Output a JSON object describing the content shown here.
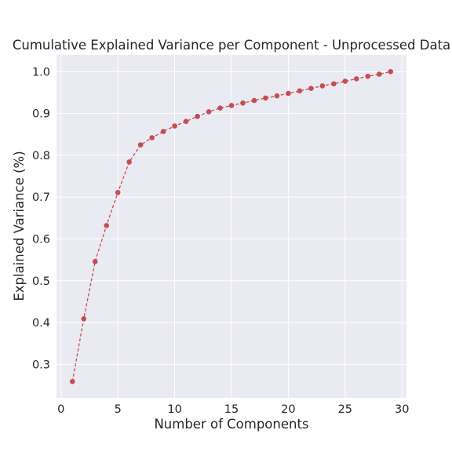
{
  "chart_data": {
    "type": "line",
    "title": "Cumulative Explained Variance per Component - Unprocessed Data",
    "xlabel": "Number of Components",
    "ylabel": "Explained Variance (%)",
    "xlim": [
      -0.4,
      30.4
    ],
    "ylim": [
      0.22,
      1.04
    ],
    "xticks": [
      0,
      5,
      10,
      15,
      20,
      25,
      30
    ],
    "yticks": [
      0.3,
      0.4,
      0.5,
      0.6,
      0.7,
      0.8,
      0.9,
      1.0
    ],
    "xtick_labels": [
      "0",
      "5",
      "10",
      "15",
      "20",
      "25",
      "30"
    ],
    "ytick_labels": [
      "0.3",
      "0.4",
      "0.5",
      "0.6",
      "0.7",
      "0.8",
      "0.9",
      "1.0"
    ],
    "grid": true,
    "series": [
      {
        "color": "#c44e52",
        "linestyle": "dashed",
        "marker": "circle",
        "x": [
          1,
          2,
          3,
          4,
          5,
          6,
          7,
          8,
          9,
          10,
          11,
          12,
          13,
          14,
          15,
          16,
          17,
          18,
          19,
          20,
          21,
          22,
          23,
          24,
          25,
          26,
          27,
          28,
          29
        ],
        "y": [
          0.259,
          0.409,
          0.546,
          0.632,
          0.711,
          0.784,
          0.825,
          0.842,
          0.857,
          0.87,
          0.881,
          0.893,
          0.904,
          0.913,
          0.919,
          0.925,
          0.931,
          0.937,
          0.942,
          0.948,
          0.954,
          0.96,
          0.966,
          0.971,
          0.977,
          0.983,
          0.989,
          0.994,
          1.0
        ]
      }
    ]
  }
}
